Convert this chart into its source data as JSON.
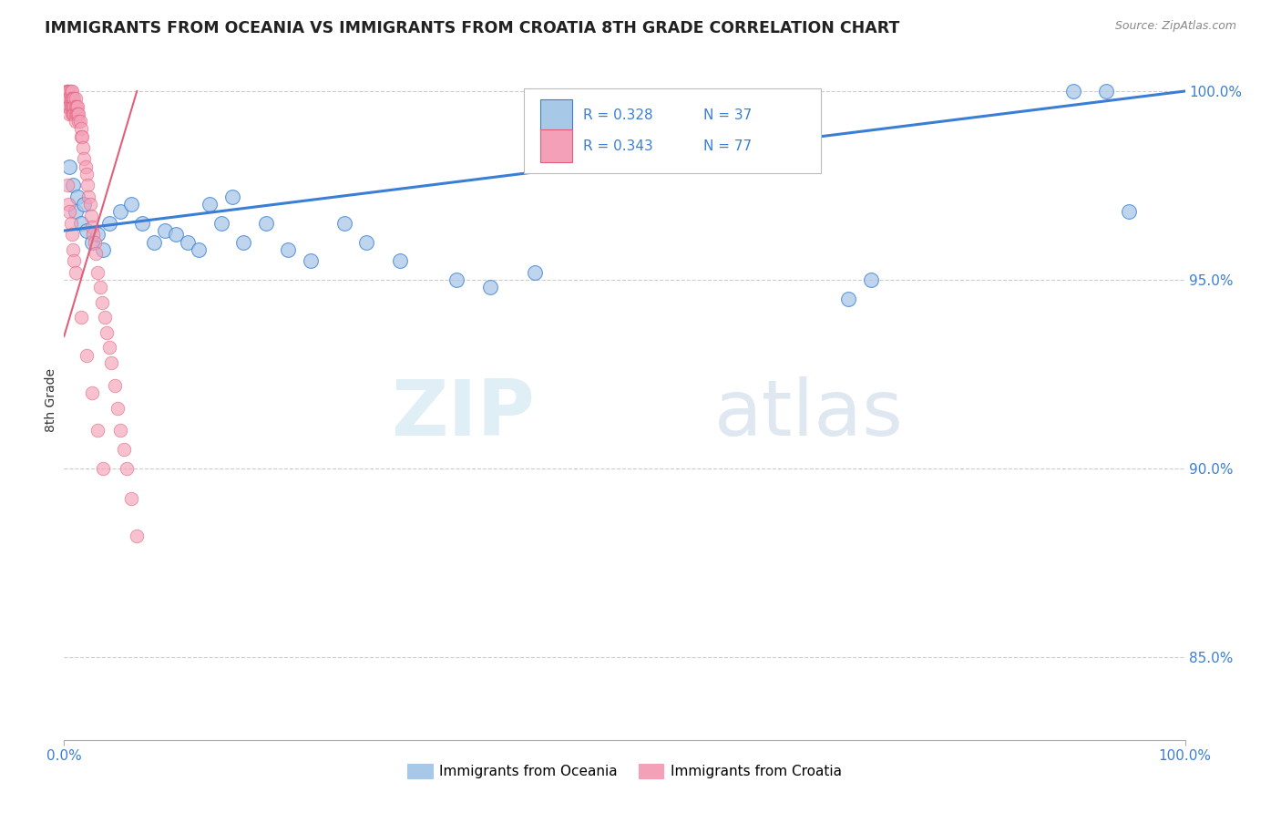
{
  "title": "IMMIGRANTS FROM OCEANIA VS IMMIGRANTS FROM CROATIA 8TH GRADE CORRELATION CHART",
  "source": "Source: ZipAtlas.com",
  "ylabel": "8th Grade",
  "legend_label1": "Immigrants from Oceania",
  "legend_label2": "Immigrants from Croatia",
  "blue_color": "#a8c8e8",
  "pink_color": "#f4a0b8",
  "line_color": "#3a7fd5",
  "pink_line_color": "#e0607a",
  "xlim": [
    0.0,
    1.0
  ],
  "ylim": [
    0.828,
    1.008
  ],
  "y_tick_vals": [
    0.85,
    0.9,
    0.95,
    1.0
  ],
  "y_tick_labels": [
    "85.0%",
    "90.0%",
    "95.0%",
    "100.0%"
  ],
  "oceania_x": [
    0.005,
    0.008,
    0.01,
    0.012,
    0.015,
    0.018,
    0.02,
    0.025,
    0.03,
    0.035,
    0.04,
    0.05,
    0.06,
    0.07,
    0.08,
    0.09,
    0.1,
    0.11,
    0.12,
    0.13,
    0.14,
    0.15,
    0.16,
    0.18,
    0.2,
    0.22,
    0.25,
    0.27,
    0.3,
    0.35,
    0.38,
    0.42,
    0.7,
    0.72,
    0.9,
    0.93,
    0.95
  ],
  "oceania_y": [
    0.98,
    0.975,
    0.968,
    0.972,
    0.965,
    0.97,
    0.963,
    0.96,
    0.962,
    0.958,
    0.965,
    0.968,
    0.97,
    0.965,
    0.96,
    0.963,
    0.962,
    0.96,
    0.958,
    0.97,
    0.965,
    0.972,
    0.96,
    0.965,
    0.958,
    0.955,
    0.965,
    0.96,
    0.955,
    0.95,
    0.948,
    0.952,
    0.945,
    0.95,
    1.0,
    1.0,
    0.968
  ],
  "croatia_x": [
    0.002,
    0.003,
    0.003,
    0.003,
    0.004,
    0.004,
    0.004,
    0.005,
    0.005,
    0.005,
    0.005,
    0.006,
    0.006,
    0.006,
    0.007,
    0.007,
    0.007,
    0.007,
    0.008,
    0.008,
    0.008,
    0.009,
    0.009,
    0.009,
    0.01,
    0.01,
    0.01,
    0.01,
    0.011,
    0.011,
    0.012,
    0.012,
    0.013,
    0.013,
    0.014,
    0.015,
    0.015,
    0.016,
    0.017,
    0.018,
    0.019,
    0.02,
    0.021,
    0.022,
    0.023,
    0.024,
    0.025,
    0.026,
    0.027,
    0.028,
    0.03,
    0.032,
    0.034,
    0.036,
    0.038,
    0.04,
    0.042,
    0.045,
    0.048,
    0.05,
    0.053,
    0.056,
    0.06,
    0.065,
    0.003,
    0.004,
    0.005,
    0.006,
    0.007,
    0.008,
    0.009,
    0.01,
    0.015,
    0.02,
    0.025,
    0.03,
    0.035
  ],
  "croatia_y": [
    1.0,
    1.0,
    0.998,
    0.996,
    1.0,
    0.998,
    0.996,
    1.0,
    0.998,
    0.996,
    0.994,
    1.0,
    0.998,
    0.996,
    1.0,
    0.998,
    0.996,
    0.994,
    0.998,
    0.996,
    0.994,
    0.998,
    0.996,
    0.994,
    0.998,
    0.996,
    0.994,
    0.992,
    0.996,
    0.994,
    0.996,
    0.994,
    0.994,
    0.992,
    0.992,
    0.99,
    0.988,
    0.988,
    0.985,
    0.982,
    0.98,
    0.978,
    0.975,
    0.972,
    0.97,
    0.967,
    0.964,
    0.962,
    0.96,
    0.957,
    0.952,
    0.948,
    0.944,
    0.94,
    0.936,
    0.932,
    0.928,
    0.922,
    0.916,
    0.91,
    0.905,
    0.9,
    0.892,
    0.882,
    0.975,
    0.97,
    0.968,
    0.965,
    0.962,
    0.958,
    0.955,
    0.952,
    0.94,
    0.93,
    0.92,
    0.91,
    0.9
  ]
}
